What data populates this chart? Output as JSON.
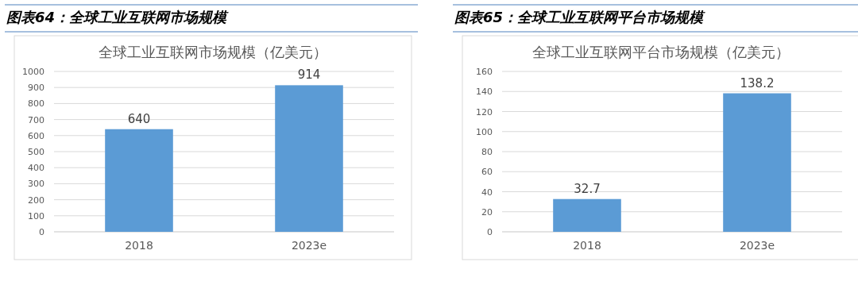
{
  "chart_data": [
    {
      "type": "bar",
      "title": "图表64：全球工业互联网市场规模",
      "subtitle": "全球工业互联网市场规模（亿美元）",
      "categories": [
        "2018",
        "2023e"
      ],
      "values": [
        640,
        914
      ],
      "color": "#5b9bd5",
      "ylim": [
        0,
        1000
      ],
      "yticks": [
        0,
        100,
        200,
        300,
        400,
        500,
        600,
        700,
        800,
        900,
        1000
      ],
      "grid": "y",
      "data_labels": true
    },
    {
      "type": "bar",
      "title": "图表65：全球工业互联网平台市场规模",
      "subtitle": "全球工业互联网平台市场规模（亿美元）",
      "categories": [
        "2018",
        "2023e"
      ],
      "values": [
        32.7,
        138.2
      ],
      "color": "#5b9bd5",
      "ylim": [
        0,
        160
      ],
      "yticks": [
        0,
        20,
        40,
        60,
        80,
        100,
        120,
        140,
        160
      ],
      "grid": "y",
      "data_labels": true
    }
  ]
}
